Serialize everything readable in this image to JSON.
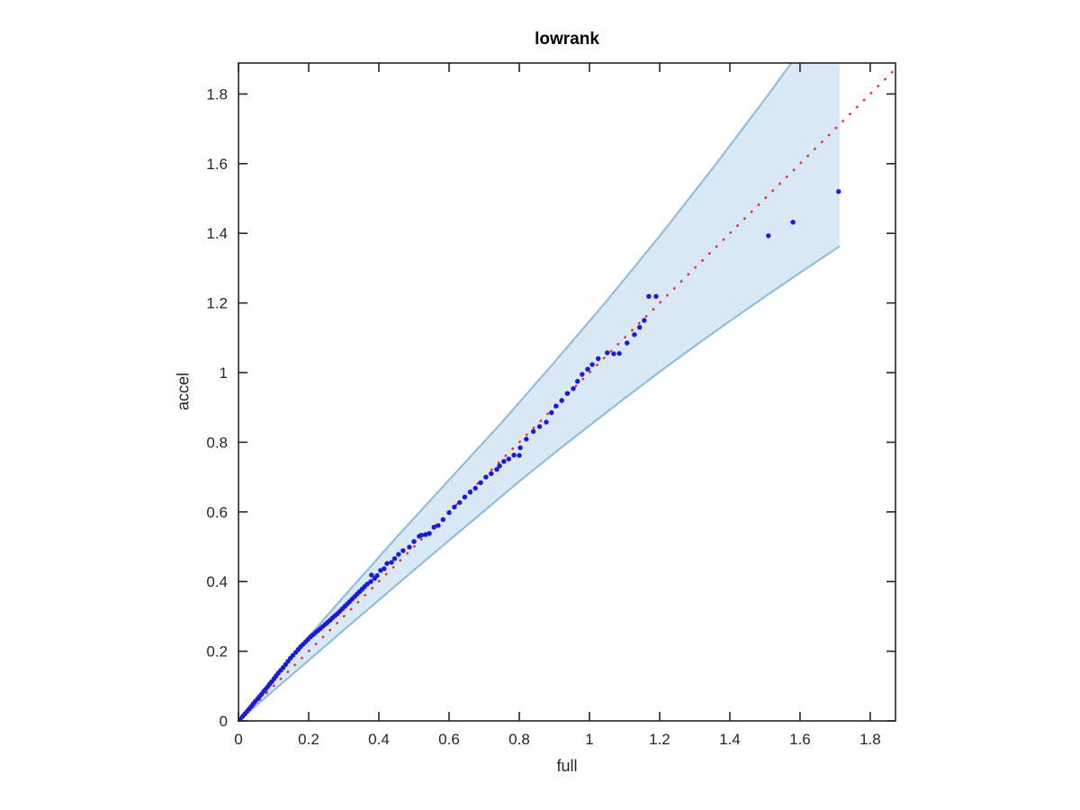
{
  "chart_data": {
    "type": "scatter",
    "title": "lowrank",
    "xlabel": "full",
    "ylabel": "accel",
    "xlim": [
      0,
      1.872
    ],
    "ylim": [
      0,
      1.889
    ],
    "grid": false,
    "legend": null,
    "xticks": [
      0,
      0.2,
      0.4,
      0.6,
      0.8,
      1.0,
      1.2,
      1.4,
      1.6,
      1.8
    ],
    "xtick_labels": [
      "0",
      "0.2",
      "0.4",
      "0.6",
      "0.8",
      "1",
      "1.2",
      "1.4",
      "1.6",
      "1.8"
    ],
    "yticks": [
      0,
      0.2,
      0.4,
      0.6,
      0.8,
      1.0,
      1.2,
      1.4,
      1.6,
      1.8
    ],
    "ytick_labels": [
      "0",
      "0.2",
      "0.4",
      "0.6",
      "0.8",
      "1",
      "1.2",
      "1.4",
      "1.6",
      "1.8"
    ],
    "ref_line": {
      "style": "dotted",
      "x": [
        0,
        1.872
      ],
      "y": [
        0,
        1.872
      ]
    },
    "band": {
      "upper": [
        [
          0,
          0
        ],
        [
          0.05,
          0.0615
        ],
        [
          0.1,
          0.123
        ],
        [
          0.2,
          0.242
        ],
        [
          0.3,
          0.357
        ],
        [
          0.45,
          0.527
        ],
        [
          0.6,
          0.692
        ],
        [
          0.75,
          0.857
        ],
        [
          0.9,
          1.03
        ],
        [
          1.05,
          1.207
        ],
        [
          1.2,
          1.392
        ],
        [
          1.35,
          1.585
        ],
        [
          1.5,
          1.785
        ],
        [
          1.575,
          1.889
        ]
      ],
      "lower": [
        [
          0,
          0
        ],
        [
          0.1,
          0.087
        ],
        [
          0.2,
          0.174
        ],
        [
          0.3,
          0.261
        ],
        [
          0.4,
          0.347
        ],
        [
          0.5,
          0.433
        ],
        [
          0.6,
          0.518
        ],
        [
          0.7,
          0.603
        ],
        [
          0.8,
          0.688
        ],
        [
          0.9,
          0.769
        ],
        [
          1.0,
          0.848
        ],
        [
          1.1,
          0.926
        ],
        [
          1.2,
          1.002
        ],
        [
          1.3,
          1.076
        ],
        [
          1.4,
          1.148
        ],
        [
          1.5,
          1.218
        ],
        [
          1.6,
          1.287
        ],
        [
          1.713,
          1.363
        ]
      ]
    },
    "points": [
      [
        0.005,
        0.005
      ],
      [
        0.012,
        0.013
      ],
      [
        0.018,
        0.02
      ],
      [
        0.024,
        0.027
      ],
      [
        0.03,
        0.034
      ],
      [
        0.036,
        0.041
      ],
      [
        0.042,
        0.049
      ],
      [
        0.048,
        0.056
      ],
      [
        0.054,
        0.063
      ],
      [
        0.06,
        0.07
      ],
      [
        0.066,
        0.077
      ],
      [
        0.072,
        0.085
      ],
      [
        0.077,
        0.091
      ],
      [
        0.083,
        0.098
      ],
      [
        0.089,
        0.106
      ],
      [
        0.095,
        0.113
      ],
      [
        0.101,
        0.121
      ],
      [
        0.107,
        0.129
      ],
      [
        0.113,
        0.137
      ],
      [
        0.12,
        0.145
      ],
      [
        0.127,
        0.153
      ],
      [
        0.134,
        0.162
      ],
      [
        0.141,
        0.171
      ],
      [
        0.148,
        0.18
      ],
      [
        0.155,
        0.188
      ],
      [
        0.163,
        0.197
      ],
      [
        0.17,
        0.205
      ],
      [
        0.177,
        0.213
      ],
      [
        0.184,
        0.22
      ],
      [
        0.191,
        0.227
      ],
      [
        0.198,
        0.234
      ],
      [
        0.205,
        0.241
      ],
      [
        0.212,
        0.247
      ],
      [
        0.219,
        0.253
      ],
      [
        0.226,
        0.259
      ],
      [
        0.233,
        0.265
      ],
      [
        0.24,
        0.271
      ],
      [
        0.247,
        0.277
      ],
      [
        0.254,
        0.283
      ],
      [
        0.261,
        0.289
      ],
      [
        0.268,
        0.296
      ],
      [
        0.275,
        0.302
      ],
      [
        0.282,
        0.308
      ],
      [
        0.289,
        0.315
      ],
      [
        0.296,
        0.322
      ],
      [
        0.303,
        0.329
      ],
      [
        0.31,
        0.336
      ],
      [
        0.317,
        0.343
      ],
      [
        0.324,
        0.35
      ],
      [
        0.331,
        0.357
      ],
      [
        0.338,
        0.364
      ],
      [
        0.345,
        0.371
      ],
      [
        0.352,
        0.378
      ],
      [
        0.359,
        0.385
      ],
      [
        0.367,
        0.393
      ],
      [
        0.377,
        0.4
      ],
      [
        0.379,
        0.419
      ],
      [
        0.388,
        0.409
      ],
      [
        0.395,
        0.417
      ],
      [
        0.405,
        0.432
      ],
      [
        0.415,
        0.437
      ],
      [
        0.423,
        0.452
      ],
      [
        0.436,
        0.455
      ],
      [
        0.445,
        0.466
      ],
      [
        0.456,
        0.478
      ],
      [
        0.469,
        0.489
      ],
      [
        0.487,
        0.499
      ],
      [
        0.5,
        0.515
      ],
      [
        0.515,
        0.53
      ],
      [
        0.521,
        0.533
      ],
      [
        0.533,
        0.535
      ],
      [
        0.544,
        0.538
      ],
      [
        0.557,
        0.556
      ],
      [
        0.569,
        0.561
      ],
      [
        0.583,
        0.578
      ],
      [
        0.6,
        0.598
      ],
      [
        0.615,
        0.614
      ],
      [
        0.63,
        0.627
      ],
      [
        0.645,
        0.643
      ],
      [
        0.66,
        0.657
      ],
      [
        0.675,
        0.668
      ],
      [
        0.69,
        0.684
      ],
      [
        0.705,
        0.7
      ],
      [
        0.72,
        0.71
      ],
      [
        0.736,
        0.722
      ],
      [
        0.744,
        0.732
      ],
      [
        0.756,
        0.745
      ],
      [
        0.77,
        0.752
      ],
      [
        0.785,
        0.763
      ],
      [
        0.8,
        0.762
      ],
      [
        0.803,
        0.784
      ],
      [
        0.82,
        0.809
      ],
      [
        0.84,
        0.831
      ],
      [
        0.858,
        0.845
      ],
      [
        0.877,
        0.858
      ],
      [
        0.892,
        0.885
      ],
      [
        0.905,
        0.904
      ],
      [
        0.921,
        0.92
      ],
      [
        0.937,
        0.94
      ],
      [
        0.954,
        0.954
      ],
      [
        0.966,
        0.975
      ],
      [
        0.979,
        0.995
      ],
      [
        0.995,
        1.01
      ],
      [
        1.008,
        1.023
      ],
      [
        1.025,
        1.04
      ],
      [
        1.051,
        1.057
      ],
      [
        1.069,
        1.054
      ],
      [
        1.085,
        1.055
      ],
      [
        1.107,
        1.085
      ],
      [
        1.128,
        1.109
      ],
      [
        1.143,
        1.13
      ],
      [
        1.156,
        1.15
      ],
      [
        1.169,
        1.219
      ],
      [
        1.19,
        1.219
      ],
      [
        1.51,
        1.393
      ],
      [
        1.58,
        1.432
      ],
      [
        1.71,
        1.52
      ]
    ],
    "colors": {
      "scatter": "#1a1ad8",
      "ref_line": "#f5261d",
      "band_fill": "#d9e8f5",
      "band_edge": "#8cbada",
      "axis": "#262626",
      "title": "#000000"
    }
  }
}
